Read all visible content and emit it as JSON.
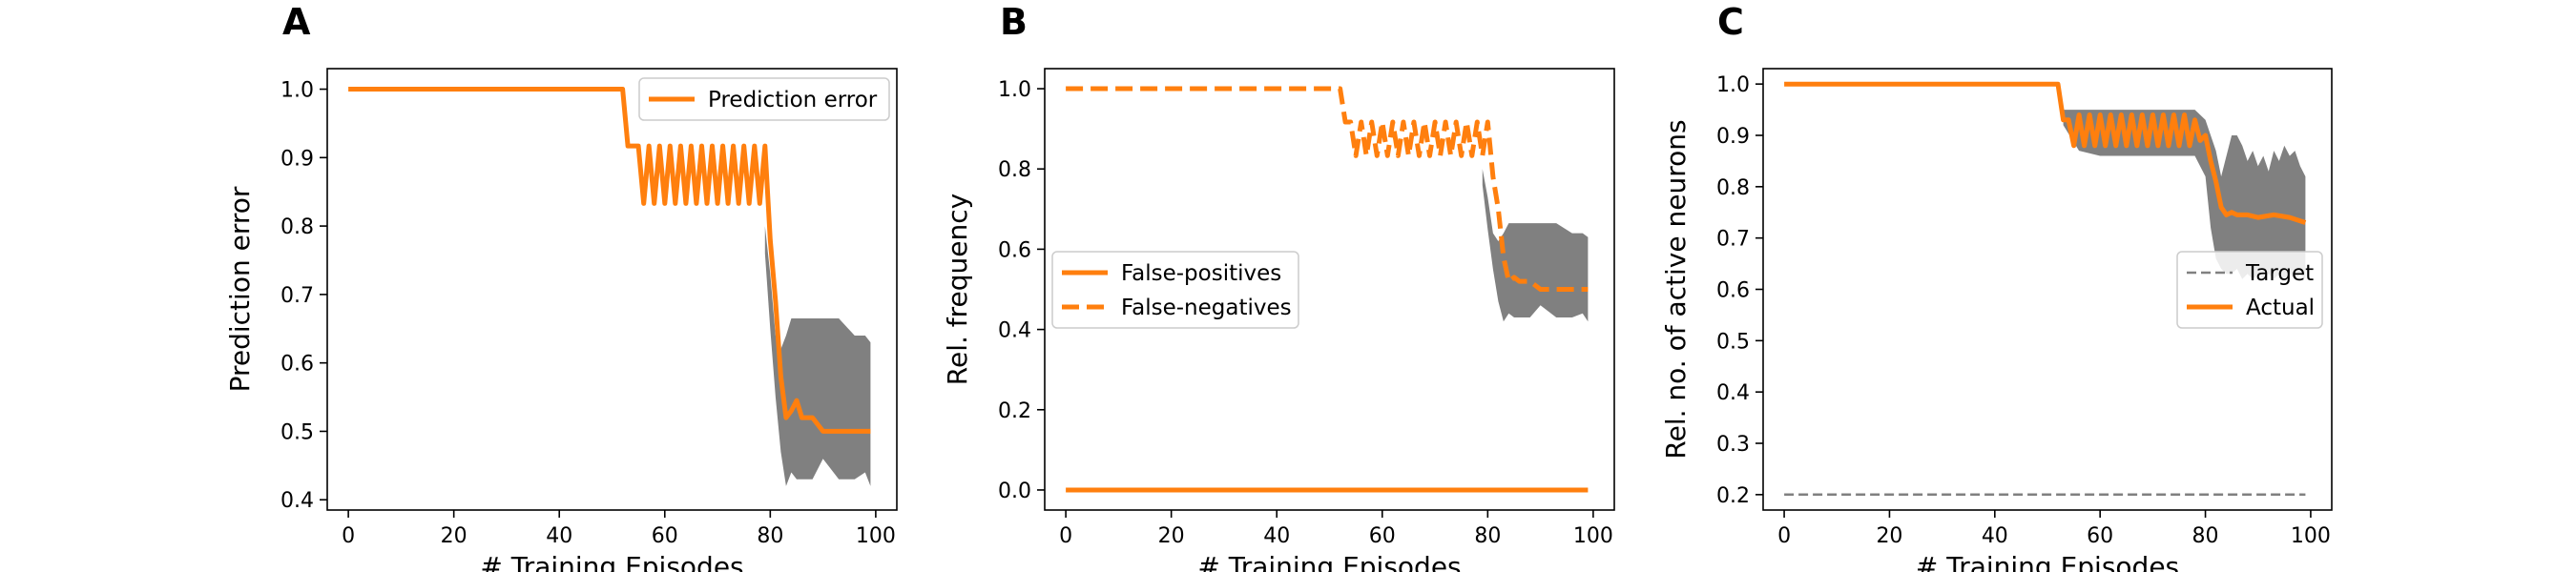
{
  "chart_data": [
    {
      "type": "line",
      "panel_label": "A",
      "xlabel": "# Training Episodes",
      "ylabel": "Prediction error",
      "xlim": [
        -4,
        104
      ],
      "ylim": [
        0.385,
        1.03
      ],
      "xticks": [
        0,
        20,
        40,
        60,
        80,
        100
      ],
      "yticks": [
        0.4,
        0.5,
        0.6,
        0.7,
        0.8,
        0.9,
        1.0
      ],
      "ytick_labels": [
        "0.4",
        "0.5",
        "0.6",
        "0.7",
        "0.8",
        "0.9",
        "1.0"
      ],
      "legend_position": "upper-right",
      "colors": {
        "line": "#ff7f0e",
        "band": "#808080"
      },
      "series": [
        {
          "name": "Prediction error",
          "style": "solid",
          "x": [
            0,
            5,
            10,
            15,
            20,
            25,
            30,
            35,
            40,
            45,
            50,
            52,
            53,
            54,
            55,
            56,
            57,
            58,
            59,
            60,
            61,
            62,
            63,
            64,
            65,
            66,
            67,
            68,
            69,
            70,
            71,
            72,
            73,
            74,
            75,
            76,
            77,
            78,
            79,
            80,
            81,
            82,
            83,
            84,
            85,
            86,
            88,
            90,
            95,
            99
          ],
          "y": [
            1.0,
            1.0,
            1.0,
            1.0,
            1.0,
            1.0,
            1.0,
            1.0,
            1.0,
            1.0,
            1.0,
            1.0,
            0.917,
            0.917,
            0.917,
            0.833,
            0.917,
            0.833,
            0.917,
            0.833,
            0.917,
            0.833,
            0.917,
            0.833,
            0.917,
            0.833,
            0.917,
            0.833,
            0.917,
            0.833,
            0.917,
            0.833,
            0.917,
            0.833,
            0.917,
            0.833,
            0.917,
            0.833,
            0.917,
            0.78,
            0.69,
            0.58,
            0.52,
            0.53,
            0.545,
            0.52,
            0.52,
            0.5,
            0.5,
            0.5
          ]
        }
      ],
      "band": {
        "x": [
          79,
          80,
          81,
          82,
          83,
          84,
          85,
          86,
          88,
          90,
          93,
          96,
          98,
          99
        ],
        "lower": [
          0.76,
          0.65,
          0.55,
          0.47,
          0.42,
          0.44,
          0.43,
          0.43,
          0.43,
          0.46,
          0.43,
          0.43,
          0.44,
          0.42
        ],
        "upper": [
          0.8,
          0.73,
          0.64,
          0.62,
          0.64,
          0.665,
          0.665,
          0.665,
          0.665,
          0.665,
          0.665,
          0.64,
          0.64,
          0.63
        ]
      }
    },
    {
      "type": "line",
      "panel_label": "B",
      "xlabel": "# Training Episodes",
      "ylabel": "Rel. frequency",
      "xlim": [
        -4,
        104
      ],
      "ylim": [
        -0.05,
        1.05
      ],
      "xticks": [
        0,
        20,
        40,
        60,
        80,
        100
      ],
      "yticks": [
        0.0,
        0.2,
        0.4,
        0.6,
        0.8,
        1.0
      ],
      "ytick_labels": [
        "0.0",
        "0.2",
        "0.4",
        "0.6",
        "0.8",
        "1.0"
      ],
      "legend_position": "center-left",
      "colors": {
        "line": "#ff7f0e",
        "band": "#808080"
      },
      "series": [
        {
          "name": "False-positives",
          "style": "solid",
          "x": [
            0,
            99
          ],
          "y": [
            0.0,
            0.0
          ]
        },
        {
          "name": "False-negatives",
          "style": "dashed",
          "x": [
            0,
            10,
            20,
            30,
            40,
            50,
            52,
            53,
            54,
            55,
            56,
            57,
            58,
            59,
            60,
            61,
            62,
            63,
            64,
            65,
            66,
            67,
            68,
            69,
            70,
            71,
            72,
            73,
            74,
            75,
            76,
            77,
            78,
            79,
            80,
            81,
            82,
            83,
            84,
            85,
            86,
            88,
            90,
            95,
            99
          ],
          "y": [
            1.0,
            1.0,
            1.0,
            1.0,
            1.0,
            1.0,
            1.0,
            0.917,
            0.917,
            0.833,
            0.917,
            0.833,
            0.917,
            0.833,
            0.917,
            0.833,
            0.917,
            0.833,
            0.917,
            0.833,
            0.917,
            0.833,
            0.917,
            0.833,
            0.917,
            0.833,
            0.917,
            0.833,
            0.917,
            0.833,
            0.917,
            0.833,
            0.917,
            0.833,
            0.917,
            0.78,
            0.7,
            0.58,
            0.52,
            0.53,
            0.52,
            0.52,
            0.5,
            0.5,
            0.5
          ]
        }
      ],
      "band": {
        "x": [
          79,
          80,
          81,
          82,
          83,
          84,
          85,
          86,
          88,
          90,
          93,
          96,
          98,
          99
        ],
        "lower": [
          0.76,
          0.65,
          0.55,
          0.47,
          0.42,
          0.44,
          0.43,
          0.43,
          0.43,
          0.46,
          0.43,
          0.43,
          0.44,
          0.42
        ],
        "upper": [
          0.8,
          0.73,
          0.64,
          0.62,
          0.64,
          0.665,
          0.665,
          0.665,
          0.665,
          0.665,
          0.665,
          0.64,
          0.64,
          0.63
        ]
      }
    },
    {
      "type": "line",
      "panel_label": "C",
      "xlabel": "# Training Episodes",
      "ylabel": "Rel. no. of active neurons",
      "xlim": [
        -4,
        104
      ],
      "ylim": [
        0.17,
        1.03
      ],
      "xticks": [
        0,
        20,
        40,
        60,
        80,
        100
      ],
      "yticks": [
        0.2,
        0.3,
        0.4,
        0.5,
        0.6,
        0.7,
        0.8,
        0.9,
        1.0
      ],
      "ytick_labels": [
        "0.2",
        "0.3",
        "0.4",
        "0.5",
        "0.6",
        "0.7",
        "0.8",
        "0.9",
        "1.0"
      ],
      "legend_position": "center-right",
      "colors": {
        "line": "#ff7f0e",
        "target": "#808080",
        "band": "#808080"
      },
      "series": [
        {
          "name": "Target",
          "style": "dashed-thin",
          "x": [
            0,
            99
          ],
          "y": [
            0.2,
            0.2
          ]
        },
        {
          "name": "Actual",
          "style": "solid",
          "x": [
            0,
            10,
            20,
            30,
            40,
            50,
            52,
            53,
            54,
            55,
            56,
            57,
            58,
            59,
            60,
            61,
            62,
            63,
            64,
            65,
            66,
            67,
            68,
            69,
            70,
            71,
            72,
            73,
            74,
            75,
            76,
            77,
            78,
            79,
            80,
            81,
            82,
            83,
            84,
            85,
            86,
            88,
            90,
            93,
            96,
            99
          ],
          "y": [
            1.0,
            1.0,
            1.0,
            1.0,
            1.0,
            1.0,
            1.0,
            0.93,
            0.93,
            0.88,
            0.94,
            0.88,
            0.94,
            0.88,
            0.94,
            0.88,
            0.94,
            0.88,
            0.94,
            0.88,
            0.94,
            0.88,
            0.94,
            0.88,
            0.94,
            0.88,
            0.94,
            0.88,
            0.94,
            0.88,
            0.94,
            0.88,
            0.93,
            0.89,
            0.9,
            0.85,
            0.81,
            0.76,
            0.745,
            0.75,
            0.745,
            0.745,
            0.74,
            0.745,
            0.74,
            0.73
          ]
        }
      ],
      "band": {
        "x": [
          53,
          56,
          60,
          64,
          68,
          72,
          76,
          78,
          80,
          81,
          82,
          83,
          84,
          85,
          86,
          87,
          88,
          89,
          90,
          91,
          92,
          93,
          94,
          95,
          96,
          97,
          98,
          99
        ],
        "lower": [
          0.92,
          0.87,
          0.86,
          0.86,
          0.86,
          0.86,
          0.86,
          0.86,
          0.82,
          0.72,
          0.66,
          0.64,
          0.63,
          0.63,
          0.64,
          0.62,
          0.63,
          0.62,
          0.63,
          0.62,
          0.63,
          0.62,
          0.63,
          0.62,
          0.63,
          0.62,
          0.63,
          0.62
        ],
        "upper": [
          0.95,
          0.95,
          0.95,
          0.95,
          0.95,
          0.95,
          0.95,
          0.95,
          0.93,
          0.9,
          0.87,
          0.82,
          0.86,
          0.9,
          0.9,
          0.88,
          0.85,
          0.87,
          0.84,
          0.86,
          0.83,
          0.87,
          0.85,
          0.88,
          0.86,
          0.87,
          0.84,
          0.82
        ]
      }
    }
  ]
}
